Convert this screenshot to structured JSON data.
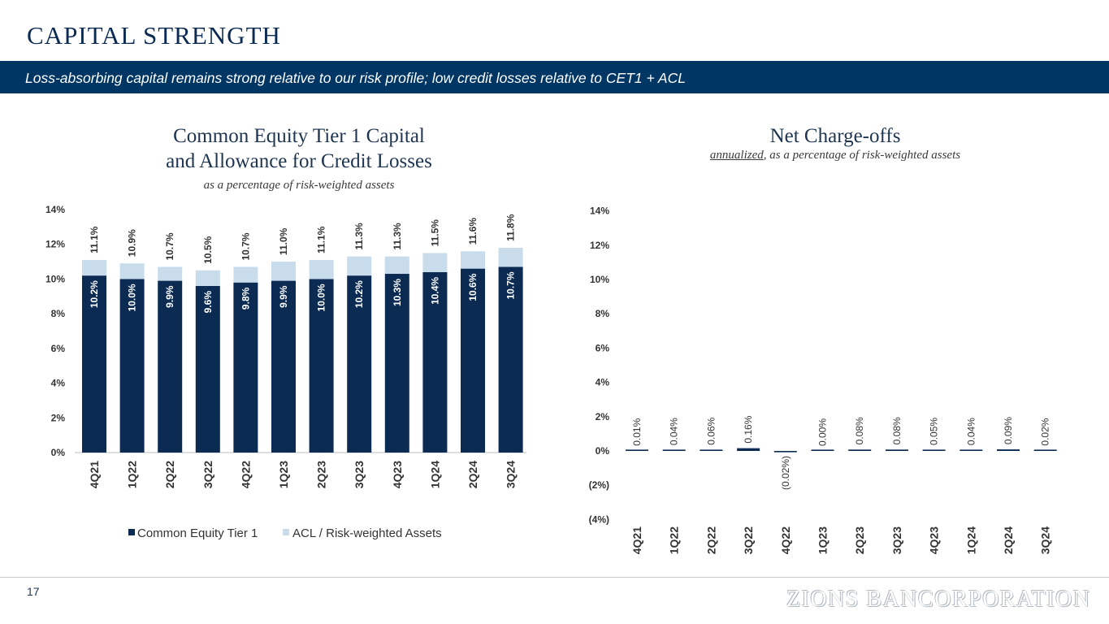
{
  "page": {
    "title": "CAPITAL STRENGTH",
    "banner": "Loss-absorbing capital remains strong relative to our risk profile; low credit losses relative to CET1 + ACL",
    "page_number": "17",
    "logo_text": "ZIONS BANCORPORATION"
  },
  "left": {
    "title_line1": "Common Equity Tier 1 Capital",
    "title_line2": "and Allowance for Credit Losses",
    "subtitle": "as a percentage of risk-weighted assets"
  },
  "right": {
    "title": "Net Charge-offs",
    "subtitle_underlined": "annualized",
    "subtitle_rest": ", as a percentage of risk-weighted assets"
  },
  "chart_data": [
    {
      "type": "bar",
      "stacked": true,
      "categories": [
        "4Q21",
        "1Q22",
        "2Q22",
        "3Q22",
        "4Q22",
        "1Q23",
        "2Q23",
        "3Q23",
        "4Q23",
        "1Q24",
        "2Q24",
        "3Q24"
      ],
      "series": [
        {
          "name": "Common Equity Tier 1",
          "color": "#0b2b52",
          "values": [
            10.2,
            10.0,
            9.9,
            9.6,
            9.8,
            9.9,
            10.0,
            10.2,
            10.3,
            10.4,
            10.6,
            10.7
          ],
          "labels": [
            "10.2%",
            "10.0%",
            "9.9%",
            "9.6%",
            "9.8%",
            "9.9%",
            "10.0%",
            "10.2%",
            "10.3%",
            "10.4%",
            "10.6%",
            "10.7%"
          ]
        },
        {
          "name": "ACL / Risk-weighted Assets",
          "color": "#c8dcec",
          "values": [
            0.9,
            0.9,
            0.8,
            0.9,
            0.9,
            1.1,
            1.1,
            1.1,
            1.0,
            1.1,
            1.0,
            1.1
          ]
        }
      ],
      "totals": [
        11.1,
        10.9,
        10.7,
        10.5,
        10.7,
        11.0,
        11.1,
        11.3,
        11.3,
        11.5,
        11.6,
        11.8
      ],
      "total_labels": [
        "11.1%",
        "10.9%",
        "10.7%",
        "10.5%",
        "10.7%",
        "11.0%",
        "11.1%",
        "11.3%",
        "11.3%",
        "11.5%",
        "11.6%",
        "11.8%"
      ],
      "ylim": [
        0,
        14
      ],
      "yticks": [
        "0%",
        "2%",
        "4%",
        "6%",
        "8%",
        "10%",
        "12%",
        "14%"
      ],
      "grid": false,
      "legend": "bottom"
    },
    {
      "type": "bar",
      "categories": [
        "4Q21",
        "1Q22",
        "2Q22",
        "3Q22",
        "4Q22",
        "1Q23",
        "2Q23",
        "3Q23",
        "4Q23",
        "1Q24",
        "2Q24",
        "3Q24"
      ],
      "values": [
        0.01,
        0.04,
        0.06,
        0.16,
        -0.02,
        0.0,
        0.08,
        0.08,
        0.05,
        0.04,
        0.09,
        0.02
      ],
      "labels": [
        "0.01%",
        "0.04%",
        "0.06%",
        "0.16%",
        "(0.02%)",
        "0.00%",
        "0.08%",
        "0.08%",
        "0.05%",
        "0.04%",
        "0.09%",
        "0.02%"
      ],
      "color": "#0b2b52",
      "ylim": [
        -4,
        14
      ],
      "yticks": [
        "(4%)",
        "(2%)",
        "0%",
        "2%",
        "4%",
        "6%",
        "8%",
        "10%",
        "12%",
        "14%"
      ],
      "grid": false
    }
  ]
}
